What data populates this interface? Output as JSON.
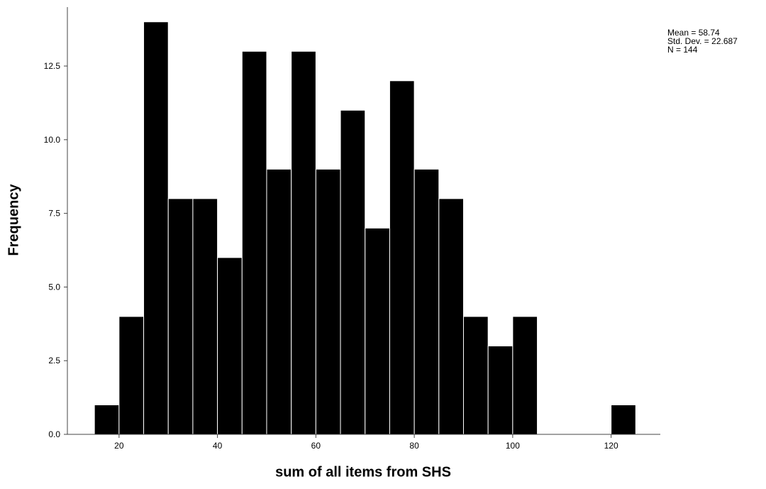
{
  "chart_data": {
    "type": "bar",
    "subtype": "histogram",
    "xlabel": "sum of all items from SHS",
    "ylabel": "Frequency",
    "bin_width": 5,
    "bins": [
      {
        "start": 15,
        "end": 20,
        "count": 1
      },
      {
        "start": 20,
        "end": 25,
        "count": 4
      },
      {
        "start": 25,
        "end": 30,
        "count": 14
      },
      {
        "start": 30,
        "end": 35,
        "count": 8
      },
      {
        "start": 35,
        "end": 40,
        "count": 8
      },
      {
        "start": 40,
        "end": 45,
        "count": 6
      },
      {
        "start": 45,
        "end": 50,
        "count": 13
      },
      {
        "start": 50,
        "end": 55,
        "count": 9
      },
      {
        "start": 55,
        "end": 60,
        "count": 13
      },
      {
        "start": 60,
        "end": 65,
        "count": 9
      },
      {
        "start": 65,
        "end": 70,
        "count": 11
      },
      {
        "start": 70,
        "end": 75,
        "count": 7
      },
      {
        "start": 75,
        "end": 80,
        "count": 12
      },
      {
        "start": 80,
        "end": 85,
        "count": 9
      },
      {
        "start": 85,
        "end": 90,
        "count": 8
      },
      {
        "start": 90,
        "end": 95,
        "count": 4
      },
      {
        "start": 95,
        "end": 100,
        "count": 3
      },
      {
        "start": 100,
        "end": 105,
        "count": 4
      },
      {
        "start": 120,
        "end": 125,
        "count": 1
      }
    ],
    "xlim": [
      9.5,
      130
    ],
    "ylim": [
      0,
      14.5
    ],
    "x_ticks": [
      20,
      40,
      60,
      80,
      100,
      120
    ],
    "y_ticks": [
      "0.0",
      "2.5",
      "5.0",
      "7.5",
      "10.0",
      "12.5"
    ],
    "grid": false,
    "bar_color": "#000000",
    "bar_edge_color": "#ffffff",
    "stats": {
      "mean": "Mean = 58.74",
      "std_dev": "Std. Dev. = 22.687",
      "n": "N = 144"
    }
  }
}
